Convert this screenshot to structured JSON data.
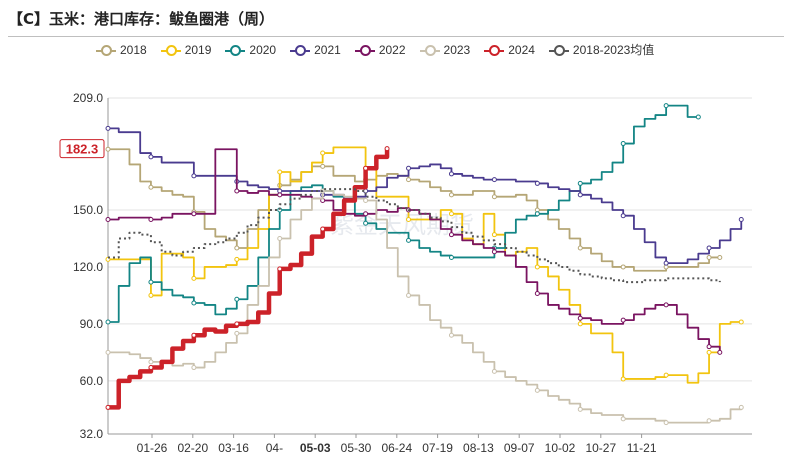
{
  "title": "【C】玉米：港口库存：鲅鱼圈港（周）",
  "watermark": "紫金天风期货",
  "colors": {
    "2018": "#b5a676",
    "2019": "#f2c40f",
    "2020": "#138585",
    "2021": "#4a3b8f",
    "2022": "#7a1461",
    "2023": "#c9c1ae",
    "2024": "#cc2229",
    "avg": "#555555"
  },
  "chart_data": {
    "type": "line",
    "title": "【C】玉米：港口库存：鲅鱼圈港（周）",
    "x_ticks": [
      "01-26",
      "02-20",
      "03-16",
      "04-",
      "05-03",
      "05-30",
      "06-24",
      "07-19",
      "08-13",
      "09-07",
      "10-02",
      "10-27",
      "11-21"
    ],
    "highlighted_tick": "05-03",
    "ylim": [
      32.0,
      209.0
    ],
    "y_ticks": [
      "32.0",
      "60.0",
      "90.0",
      "120.0",
      "150.0",
      "182.3",
      "209.0"
    ],
    "current_value_label": "182.3",
    "grid": "horizontal",
    "legend_position": "top",
    "series": [
      {
        "name": "2018",
        "values": [
          182,
          182,
          174,
          165,
          162,
          160,
          158,
          157,
          149,
          140,
          136,
          134,
          130,
          140,
          150,
          158,
          163,
          166,
          170,
          173,
          173,
          168,
          168,
          165,
          166,
          168,
          169,
          168,
          166,
          165,
          162,
          160,
          158,
          158,
          160,
          160,
          157,
          157,
          158,
          155,
          150,
          145,
          140,
          135,
          130,
          127,
          123,
          120,
          120,
          118,
          118,
          118,
          120,
          120,
          120,
          122,
          125,
          125
        ]
      },
      {
        "name": "2019",
        "values": [
          124,
          124,
          124,
          124,
          105,
          127,
          127,
          125,
          114,
          120,
          120,
          121,
          124,
          130,
          140,
          158,
          170,
          165,
          170,
          175,
          180,
          183,
          183,
          183,
          172,
          157,
          157,
          157,
          145,
          145,
          145,
          150,
          148,
          135,
          132,
          148,
          137,
          126,
          128,
          130,
          120,
          115,
          108,
          100,
          90,
          85,
          85,
          75,
          61,
          61,
          61,
          62,
          63,
          63,
          59,
          64,
          75,
          90,
          91,
          91
        ]
      },
      {
        "name": "2020",
        "values": [
          91,
          110,
          122,
          125,
          112,
          108,
          105,
          104,
          101,
          100,
          95,
          98,
          103,
          110,
          125,
          140,
          150,
          160,
          162,
          163,
          160,
          157,
          155,
          148,
          143,
          140,
          138,
          138,
          134,
          130,
          128,
          126,
          125,
          125,
          125,
          125,
          130,
          138,
          145,
          147,
          148,
          150,
          155,
          160,
          164,
          166,
          170,
          175,
          185,
          194,
          198,
          200,
          205,
          205,
          199,
          199
        ]
      },
      {
        "name": "2021",
        "values": [
          193,
          191,
          191,
          180,
          178,
          175,
          175,
          175,
          168,
          168,
          168,
          168,
          165,
          163,
          162,
          161,
          160,
          160,
          160,
          160,
          158,
          158,
          156,
          157,
          160,
          162,
          167,
          168,
          172,
          173,
          174,
          172,
          169,
          168,
          167,
          166,
          166,
          166,
          165,
          165,
          164,
          162,
          161,
          160,
          158,
          156,
          154,
          150,
          147,
          140,
          133,
          125,
          122,
          122,
          124,
          127,
          130,
          134,
          140,
          145
        ]
      },
      {
        "name": "2022",
        "values": [
          145,
          146,
          146,
          146,
          145,
          146,
          148,
          148,
          148,
          148,
          182,
          182,
          160,
          159,
          160,
          158,
          158,
          158,
          157,
          156,
          155,
          150,
          148,
          147,
          148,
          150,
          149,
          151,
          150,
          148,
          145,
          140,
          137,
          134,
          132,
          130,
          128,
          126,
          120,
          112,
          106,
          100,
          98,
          95,
          93,
          92,
          90,
          90,
          92,
          95,
          98,
          100,
          100,
          95,
          88,
          82,
          78,
          75
        ]
      },
      {
        "name": "2023",
        "values": [
          75,
          75,
          74,
          72,
          70,
          70,
          68,
          69,
          67,
          70,
          75,
          80,
          85,
          100,
          110,
          125,
          135,
          145,
          150,
          156,
          160,
          158,
          157,
          156,
          155,
          145,
          130,
          115,
          105,
          100,
          92,
          88,
          84,
          80,
          75,
          70,
          65,
          62,
          60,
          58,
          55,
          52,
          50,
          48,
          45,
          43,
          42,
          42,
          40,
          40,
          40,
          39,
          38,
          38,
          38,
          38,
          39,
          40,
          45,
          46
        ]
      },
      {
        "name": "2024",
        "values": [
          46,
          60,
          62,
          65,
          67,
          70,
          77,
          81,
          84,
          87,
          86,
          89,
          90,
          91,
          96,
          106,
          119,
          121,
          127,
          136,
          140,
          148,
          155,
          162,
          172,
          178,
          182.3
        ]
      },
      {
        "name": "2018-2023均值",
        "values": [
          125,
          135,
          138,
          137,
          133,
          128,
          126,
          128,
          130,
          132,
          133,
          135,
          138,
          142,
          146,
          150,
          153,
          156,
          158,
          160,
          161,
          161,
          161,
          160,
          157,
          155,
          153,
          151,
          150,
          148,
          146,
          144,
          141,
          138,
          136,
          134,
          132,
          130,
          128,
          126,
          124,
          122,
          120,
          118,
          116,
          115,
          114,
          113,
          112,
          112,
          113,
          113,
          114,
          114,
          114,
          114,
          113,
          112
        ]
      }
    ]
  }
}
